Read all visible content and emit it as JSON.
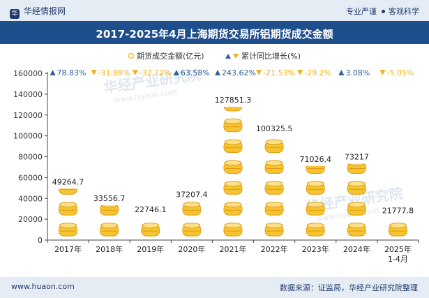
{
  "header": {
    "brand": "华经情报网",
    "tagline_left": "专业严谨",
    "tagline_right": "客观科学"
  },
  "title": "2017-2025年4月上海期货交易所铝期货成交金额",
  "footer": {
    "website": "www.huaon.com",
    "source": "数据来源：证监局，华经产业研究院整理"
  },
  "watermark": {
    "cn": "华经产业研究院",
    "url": "www.huaon.com"
  },
  "colors": {
    "header_bg": "#e6ecf4",
    "title_bg": "#1f4e8c",
    "coin_gold": "#f6c431",
    "coin_dark": "#e09b12",
    "up": "#2e5f95",
    "down": "#f3b21d"
  },
  "chart_data": {
    "type": "bar",
    "title": "2017-2025年4月上海期货交易所铝期货成交金额",
    "legend": [
      "期货成交金额(亿元)",
      "累计同比增长(%)"
    ],
    "legend_placement": "top-center",
    "categories": [
      "2017年",
      "2018年",
      "2019年",
      "2020年",
      "2021年",
      "2022年",
      "2023年",
      "2024年",
      "2025年\n1-4月"
    ],
    "values": [
      49264.7,
      33556.7,
      22746.1,
      37207.4,
      127851.3,
      100325.5,
      71026.4,
      73217,
      21777.8
    ],
    "value_labels": [
      "49264.7",
      "33556.7",
      "22746.1",
      "37207.4",
      "127851.3",
      "100325.5",
      "71026.4",
      "73217",
      "21777.8"
    ],
    "growth": [
      78.83,
      -31.88,
      -32.22,
      63.58,
      243.62,
      -21.53,
      -29.2,
      3.08,
      -5.05
    ],
    "growth_labels": [
      "78.83%",
      "-31.88%",
      "-32.22%",
      "63.58%",
      "243.62%",
      "-21.53%",
      "-29.2%",
      "3.08%",
      "-5.05%"
    ],
    "ylim": [
      0,
      160000
    ],
    "yticks": [
      0,
      20000,
      40000,
      60000,
      80000,
      100000,
      120000,
      140000,
      160000
    ],
    "coin_unit": 20000,
    "grid": false
  }
}
